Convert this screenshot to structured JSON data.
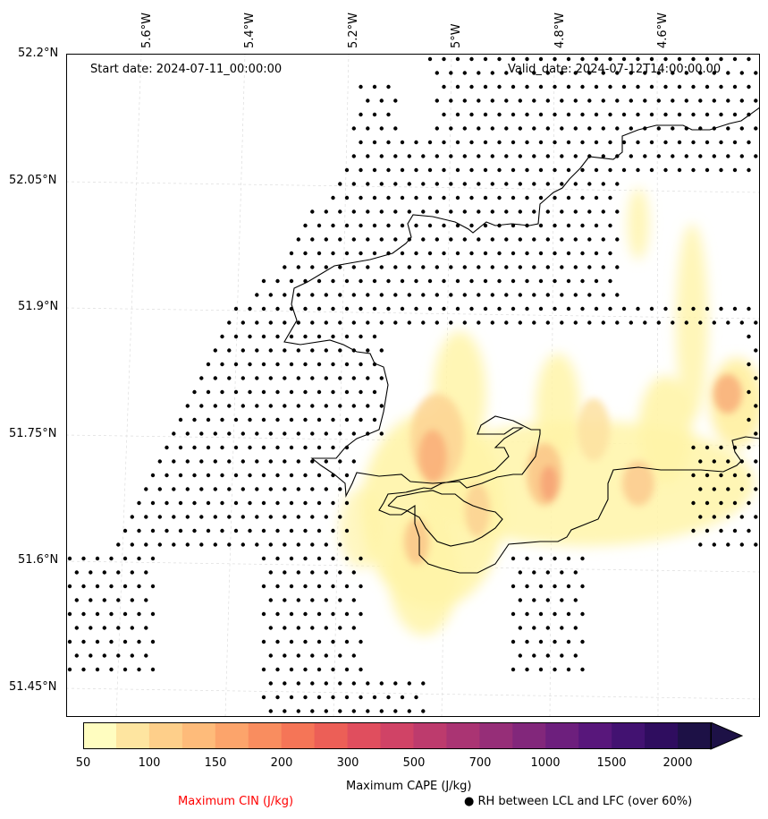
{
  "map": {
    "start_date": "Start date: 2024-07-11_00:00:00",
    "valid_date": "Valid_date: 2024-07-12T14:00:00.00",
    "lon_labels": [
      "5.6°W",
      "5.4°W",
      "5.2°W",
      "5°W",
      "4.8°W",
      "4.6°W"
    ],
    "lat_labels": [
      "52.2°N",
      "52.05°N",
      "51.9°N",
      "51.75°N",
      "51.6°N",
      "51.45°N"
    ]
  },
  "colorbar": {
    "label": "Maximum CAPE (J/kg)",
    "ticks": [
      "50",
      "100",
      "150",
      "200",
      "300",
      "500",
      "700",
      "1000",
      "1500",
      "2000"
    ],
    "colors": [
      "#fffdc0",
      "#fee5a0",
      "#fecf8a",
      "#febb7a",
      "#fca46b",
      "#f98d5f",
      "#f57557",
      "#ec5f57",
      "#e04e5e",
      "#d04366",
      "#bd3b6d",
      "#aa3473",
      "#962e78",
      "#82277b",
      "#6d1f7d",
      "#58177b",
      "#421271",
      "#2f0d5f",
      "#1d1146"
    ]
  },
  "legend": {
    "cin": "Maximum CIN (J/kg)",
    "cin_color": "#ff0000",
    "rh": "RH between LCL and LFC (over 60%)",
    "rh_marker": "●"
  }
}
